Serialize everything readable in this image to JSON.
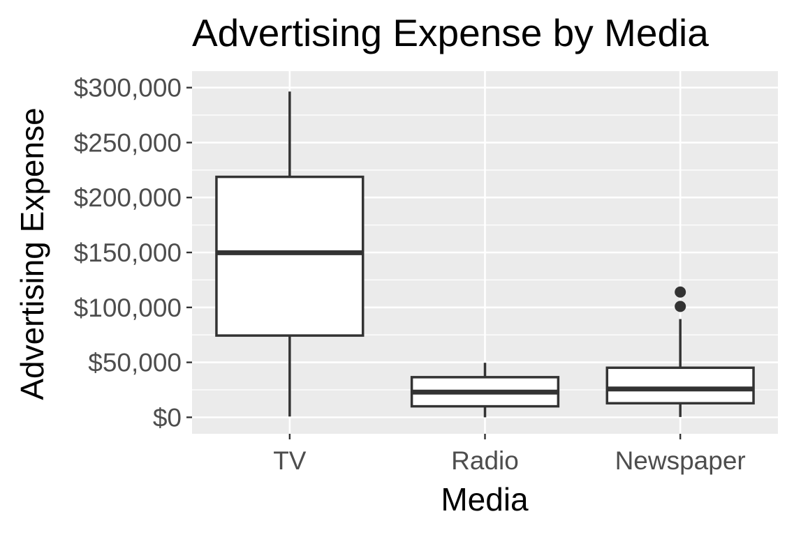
{
  "chart_data": {
    "type": "box",
    "title": "Advertising Expense by Media",
    "xlabel": "Media",
    "ylabel": "Advertising Expense",
    "ylim": [
      -15000,
      315000
    ],
    "y_ticks": [
      0,
      50000,
      100000,
      150000,
      200000,
      250000,
      300000
    ],
    "y_tick_labels": [
      "$0",
      "$50,000",
      "$100,000",
      "$150,000",
      "$200,000",
      "$250,000",
      "$300,000"
    ],
    "categories": [
      "TV",
      "Radio",
      "Newspaper"
    ],
    "boxes": [
      {
        "category": "TV",
        "whisker_low": 700,
        "q1": 74400,
        "median": 149800,
        "q3": 218800,
        "whisker_high": 296400,
        "outliers": []
      },
      {
        "category": "Radio",
        "whisker_low": 0,
        "q1": 10000,
        "median": 22900,
        "q3": 36500,
        "whisker_high": 49600,
        "outliers": []
      },
      {
        "category": "Newspaper",
        "whisker_low": 300,
        "q1": 12800,
        "median": 25800,
        "q3": 45100,
        "whisker_high": 89400,
        "outliers": [
          100900,
          114000
        ]
      }
    ],
    "grid": true,
    "legend": "none",
    "colors": {
      "panel_background": "#EBEBEB",
      "grid_line": "#FFFFFF",
      "box_fill": "#FFFFFF",
      "box_stroke": "#333333",
      "tick_label": "#4D4D4D",
      "title_text": "#000000"
    }
  }
}
